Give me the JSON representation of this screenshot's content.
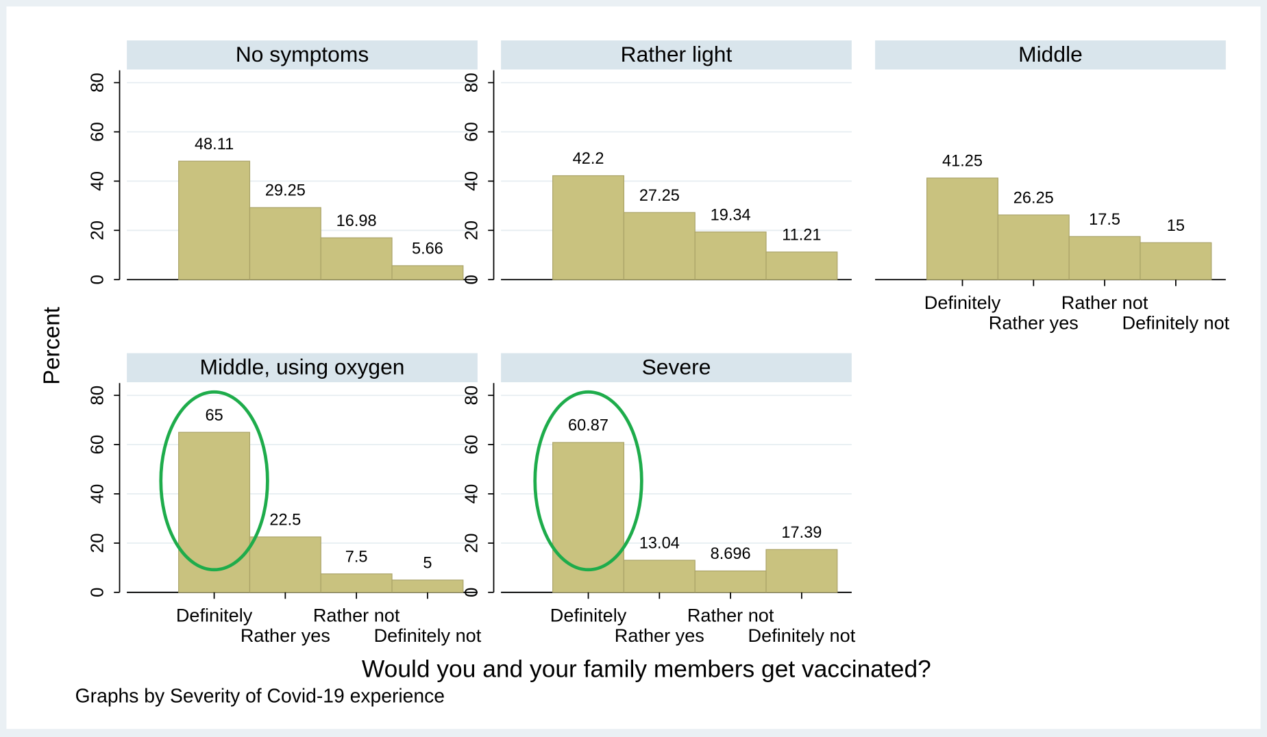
{
  "ylabel": "Percent",
  "xlabel": "Would you and your family members get vaccinated?",
  "note": "Graphs by Severity of Covid-19 experience",
  "chart_data": [
    {
      "type": "bar",
      "title": "No symptoms",
      "values": [
        48.11,
        29.25,
        16.98,
        5.66
      ],
      "color": "#c9c27f",
      "ylim": [
        0,
        85
      ],
      "yticks": [
        0,
        20,
        40,
        60,
        80
      ],
      "grid": true
    },
    {
      "type": "bar",
      "title": "Rather light",
      "values": [
        42.2,
        27.25,
        19.34,
        11.21
      ],
      "color": "#c9c27f",
      "ylim": [
        0,
        85
      ],
      "yticks": [
        0,
        20,
        40,
        60,
        80
      ],
      "grid": true
    },
    {
      "type": "bar",
      "title": "Middle",
      "categories": [
        "Definitely",
        "Rather yes",
        "Rather not",
        "Definitely not"
      ],
      "values": [
        41.25,
        26.25,
        17.5,
        15
      ],
      "color": "#c9c27f",
      "ylim": [
        0,
        85
      ],
      "grid": true
    },
    {
      "type": "bar",
      "title": "Middle, using oxygen",
      "categories": [
        "Definitely",
        "Rather yes",
        "Rather not",
        "Definitely not"
      ],
      "values": [
        65,
        22.5,
        7.5,
        5
      ],
      "color": "#c9c27f",
      "ylim": [
        0,
        85
      ],
      "yticks": [
        0,
        20,
        40,
        60,
        80
      ],
      "grid": true,
      "highlight_color": "#1eac4b"
    },
    {
      "type": "bar",
      "title": "Severe",
      "categories": [
        "Definitely",
        "Rather yes",
        "Rather not",
        "Definitely not"
      ],
      "values": [
        60.87,
        13.04,
        8.696,
        17.39
      ],
      "color": "#c9c27f",
      "ylim": [
        0,
        85
      ],
      "yticks": [
        0,
        20,
        40,
        60,
        80
      ],
      "grid": true,
      "highlight_color": "#1eac4b"
    }
  ]
}
